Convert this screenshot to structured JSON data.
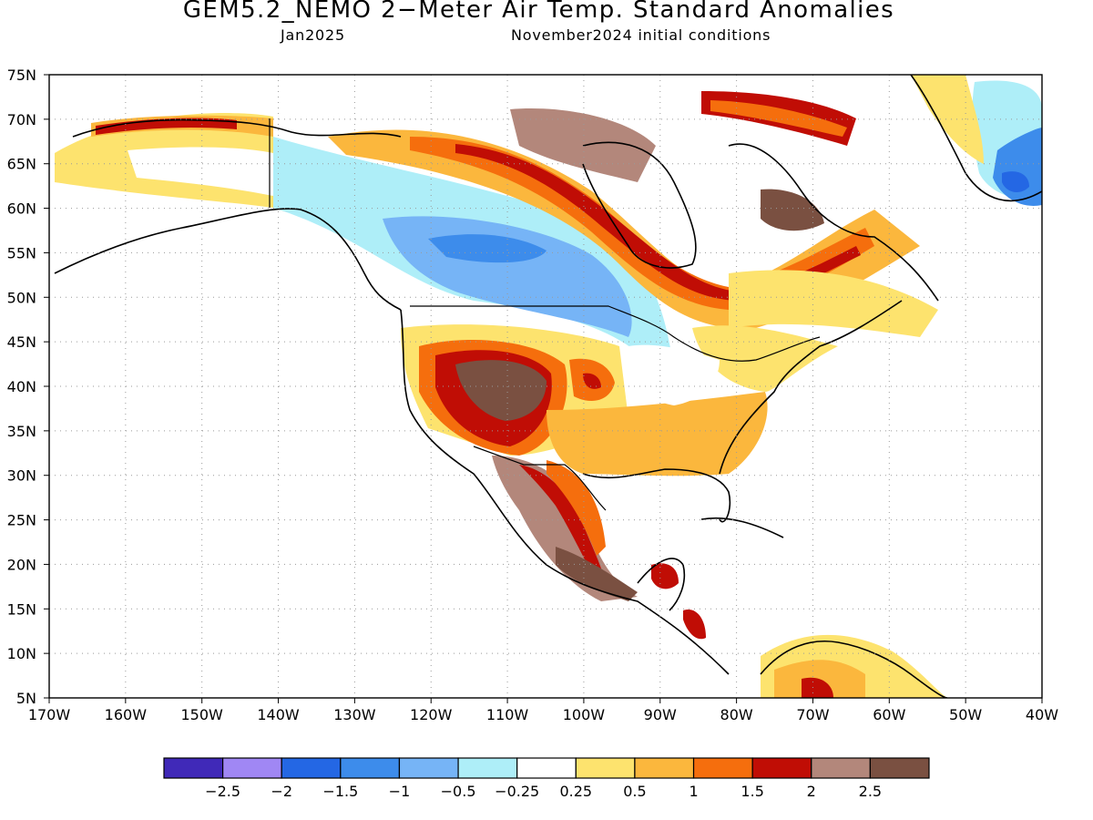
{
  "header": {
    "title": "GEM5.2_NEMO 2−Meter Air Temp. Standard Anomalies",
    "valid_month": "Jan2025",
    "init_conditions": "November2024 initial conditions"
  },
  "map": {
    "lat_labels": [
      "75N",
      "70N",
      "65N",
      "60N",
      "55N",
      "50N",
      "45N",
      "40N",
      "35N",
      "30N",
      "25N",
      "20N",
      "15N",
      "10N",
      "5N"
    ],
    "lon_labels": [
      "170W",
      "160W",
      "150W",
      "140W",
      "130W",
      "120W",
      "110W",
      "100W",
      "90W",
      "80W",
      "70W",
      "60W",
      "50W",
      "40W"
    ],
    "lat_range": [
      5,
      75
    ],
    "lon_range": [
      -170,
      -40
    ],
    "gridlines": "dotted"
  },
  "colorbar": {
    "colors": [
      "#4029b8",
      "#a087f4",
      "#2467e4",
      "#3d8ceb",
      "#76b4f6",
      "#aeeef8",
      "#ffffff",
      "#fde36e",
      "#fbb73d",
      "#f56e0d",
      "#c00d05",
      "#b3877b",
      "#7a5041"
    ],
    "labels": [
      "−2.5",
      "−2",
      "−1.5",
      "−1",
      "−0.5",
      "−0.25",
      "0.25",
      "0.5",
      "1",
      "1.5",
      "2",
      "2.5"
    ]
  }
}
